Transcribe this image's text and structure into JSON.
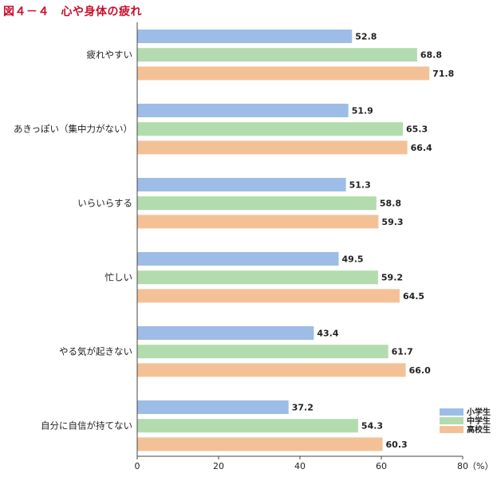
{
  "title": "図４－４　心や身体の疲れ",
  "chart_data": {
    "type": "bar",
    "orientation": "horizontal",
    "categories": [
      "疲れやすい",
      "あきっぽい（集中力がない）",
      "いらいらする",
      "忙しい",
      "やる気が起きない",
      "自分に自信が持てない"
    ],
    "series": [
      {
        "name": "小学生",
        "color": "#9dbde6",
        "values": [
          52.8,
          51.9,
          51.3,
          49.5,
          43.4,
          37.2
        ]
      },
      {
        "name": "中学生",
        "color": "#b3dcae",
        "values": [
          68.8,
          65.3,
          58.8,
          59.2,
          61.7,
          54.3
        ]
      },
      {
        "name": "高校生",
        "color": "#f4c197",
        "values": [
          71.8,
          66.4,
          59.3,
          64.5,
          66.0,
          60.3
        ]
      }
    ],
    "xlim": [
      0,
      80
    ],
    "xticks": [
      "0",
      "20",
      "40",
      "60",
      "80"
    ],
    "unit": "（%）",
    "legend_position": "bottom-right",
    "grid": false
  }
}
